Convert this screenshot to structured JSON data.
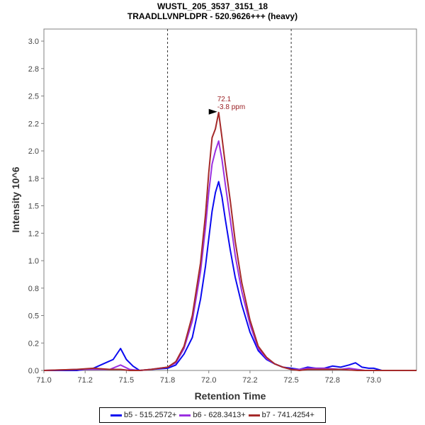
{
  "chart_data": {
    "type": "line",
    "title": "WUSTL_205_3537_3151_18",
    "subtitle": "TRAADLLVNPLDPR - 520.9626+++ (heavy)",
    "xlabel": "Retention Time",
    "ylabel": "Intensity 10^6",
    "xlim": [
      71.0,
      73.26
    ],
    "ylim": [
      0.0,
      3.11
    ],
    "x_ticks": [
      71.0,
      71.25,
      71.5,
      71.75,
      72.0,
      72.25,
      72.5,
      72.75,
      73.0
    ],
    "x_tick_labels": [
      "71.0",
      "71.2",
      "71.5",
      "71.8",
      "72.0",
      "72.2",
      "72.5",
      "72.8",
      "73.0"
    ],
    "y_ticks": [
      0.0,
      0.25,
      0.5,
      0.75,
      1.0,
      1.25,
      1.5,
      1.75,
      2.0,
      2.25,
      2.5,
      2.75,
      3.0
    ],
    "y_tick_labels": [
      "0.0",
      "0.2",
      "0.5",
      "0.8",
      "1.0",
      "1.2",
      "1.5",
      "1.8",
      "2.0",
      "2.2",
      "2.5",
      "2.8",
      "3.0"
    ],
    "grid": false,
    "legend_position": "bottom-center",
    "boundary_lines": [
      71.75,
      72.5
    ],
    "annotation": {
      "x": 72.06,
      "y": 2.35,
      "lines": [
        "72.1",
        "-3.8 ppm"
      ],
      "color": "#9b2226",
      "marker": "arrow-right"
    },
    "series": [
      {
        "name": "b5 - 515.2572+",
        "color": "#0a0af0",
        "x": [
          71.0,
          71.2,
          71.3,
          71.36,
          71.42,
          71.465,
          71.5,
          71.54,
          71.58,
          71.65,
          71.75,
          71.8,
          71.85,
          71.9,
          71.95,
          71.98,
          72.0,
          72.02,
          72.04,
          72.06,
          72.08,
          72.1,
          72.13,
          72.16,
          72.2,
          72.25,
          72.3,
          72.35,
          72.4,
          72.45,
          72.5,
          72.55,
          72.6,
          72.65,
          72.7,
          72.75,
          72.8,
          72.85,
          72.89,
          72.93,
          72.97,
          73.0,
          73.05,
          73.1,
          73.26
        ],
        "y": [
          0.0,
          0.0,
          0.02,
          0.06,
          0.1,
          0.2,
          0.1,
          0.04,
          0.0,
          0.01,
          0.02,
          0.05,
          0.15,
          0.3,
          0.65,
          0.95,
          1.2,
          1.45,
          1.62,
          1.72,
          1.58,
          1.38,
          1.1,
          0.85,
          0.6,
          0.35,
          0.18,
          0.1,
          0.06,
          0.03,
          0.02,
          0.01,
          0.03,
          0.02,
          0.02,
          0.04,
          0.03,
          0.05,
          0.07,
          0.03,
          0.02,
          0.02,
          0.0,
          0.0,
          0.0
        ]
      },
      {
        "name": "b6 - 628.3413+",
        "color": "#9b30e0",
        "x": [
          71.0,
          71.2,
          71.3,
          71.4,
          71.465,
          71.52,
          71.58,
          71.65,
          71.75,
          71.8,
          71.85,
          71.9,
          71.95,
          71.98,
          72.0,
          72.02,
          72.04,
          72.06,
          72.08,
          72.1,
          72.13,
          72.16,
          72.2,
          72.25,
          72.3,
          72.35,
          72.4,
          72.45,
          72.5,
          72.55,
          72.6,
          72.7,
          72.8,
          72.85,
          72.9,
          72.95,
          73.0,
          73.26
        ],
        "y": [
          0.0,
          0.01,
          0.01,
          0.01,
          0.05,
          0.01,
          0.0,
          0.01,
          0.03,
          0.07,
          0.2,
          0.45,
          0.9,
          1.3,
          1.62,
          1.88,
          2.0,
          2.09,
          1.92,
          1.7,
          1.38,
          1.05,
          0.72,
          0.42,
          0.2,
          0.11,
          0.06,
          0.03,
          0.01,
          0.01,
          0.02,
          0.02,
          0.01,
          0.02,
          0.01,
          0.0,
          0.0,
          0.0
        ]
      },
      {
        "name": "b7 - 741.4254+",
        "color": "#a52a2a",
        "x": [
          71.0,
          71.2,
          71.3,
          71.4,
          71.465,
          71.52,
          71.58,
          71.65,
          71.75,
          71.8,
          71.85,
          71.9,
          71.95,
          71.98,
          72.0,
          72.02,
          72.04,
          72.06,
          72.08,
          72.1,
          72.13,
          72.16,
          72.2,
          72.25,
          72.3,
          72.35,
          72.4,
          72.45,
          72.5,
          72.55,
          72.6,
          72.7,
          72.8,
          72.9,
          73.0,
          73.26
        ],
        "y": [
          0.0,
          0.01,
          0.02,
          0.01,
          0.01,
          0.0,
          0.0,
          0.01,
          0.03,
          0.08,
          0.22,
          0.5,
          0.98,
          1.42,
          1.8,
          2.12,
          2.2,
          2.35,
          2.12,
          1.88,
          1.55,
          1.18,
          0.8,
          0.46,
          0.22,
          0.12,
          0.06,
          0.03,
          0.01,
          0.0,
          0.01,
          0.01,
          0.01,
          0.0,
          0.0,
          0.0
        ]
      }
    ]
  }
}
